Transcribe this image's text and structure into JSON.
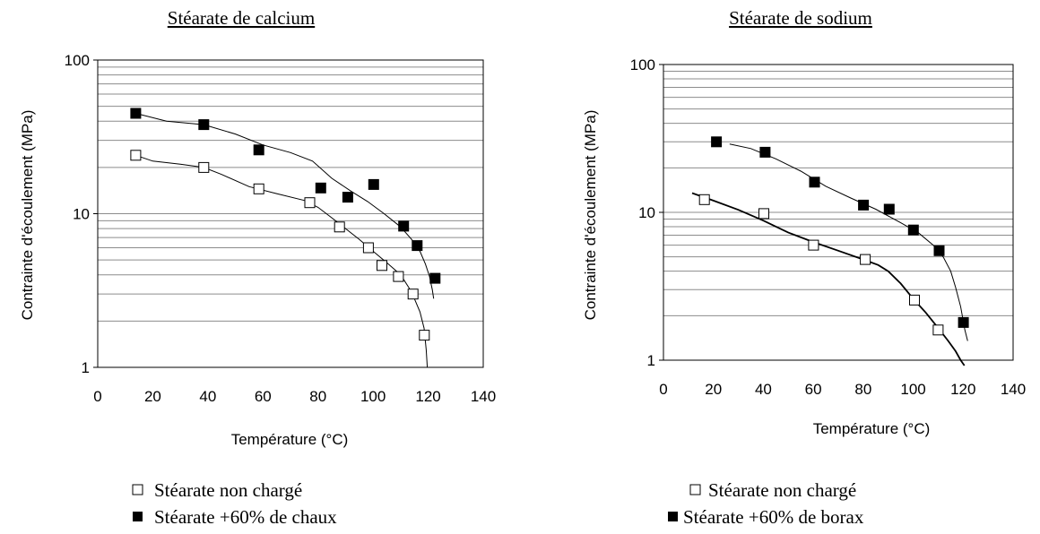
{
  "chart_data": [
    {
      "type": "scatter",
      "yscale": "log",
      "title": "Stéarate de calcium",
      "xlabel": "Température (°C)",
      "ylabel": "Contrainte d'écoulement (MPa)",
      "xlim": [
        0,
        140
      ],
      "ylim": [
        1,
        100
      ],
      "xticks": [
        "0",
        "20",
        "40",
        "60",
        "80",
        "100",
        "120",
        "140"
      ],
      "yticks": [
        "1",
        "10",
        "100"
      ],
      "grid": "horizontal minor lines",
      "series": [
        {
          "name": "Stéarate non chargé",
          "marker": "open-square",
          "x": [
            13.8,
            38.5,
            58.5,
            77.0,
            87.8,
            98.3,
            103.2,
            109.2,
            114.5,
            118.6
          ],
          "y": [
            24,
            20,
            14.5,
            11.8,
            8.2,
            6.0,
            4.6,
            3.9,
            3.0,
            1.62
          ],
          "fit": {
            "x": [
              13.8,
              20,
              30,
              38.5,
              45,
              55,
              65,
              75,
              80,
              85,
              90,
              95,
              100,
              105,
              110,
              113,
              115,
              117,
              118.5,
              119.3,
              119.7
            ],
            "y": [
              24,
              22,
              21,
              20,
              18,
              15,
              13.5,
              12.2,
              11,
              9.4,
              8,
              6.8,
              5.7,
              4.8,
              4.0,
              3.3,
              2.8,
              2.3,
              1.8,
              1.3,
              1.0
            ]
          }
        },
        {
          "name": "Stéarate +60% de chaux",
          "marker": "filled-square",
          "x": [
            13.8,
            38.5,
            58.5,
            81.0,
            90.8,
            100.2,
            111.1,
            116.0,
            122.5
          ],
          "y": [
            45,
            38,
            26,
            14.7,
            12.8,
            15.5,
            8.3,
            6.2,
            3.8
          ],
          "fit": {
            "x": [
              13.8,
              25,
              38.5,
              50,
              60,
              70,
              78,
              85,
              92,
              98,
              104,
              110,
              114,
              117,
              119,
              120.5,
              121.5,
              122
            ],
            "y": [
              45,
              40,
              38,
              33,
              28,
              25,
              22,
              17,
              14,
              12,
              10,
              8.2,
              6.8,
              5.7,
              4.7,
              3.9,
              3.2,
              2.8
            ]
          }
        }
      ]
    },
    {
      "type": "scatter",
      "yscale": "log",
      "title": "Stéarate de sodium",
      "xlabel": "Température (°C)",
      "ylabel": "Contrainte d'écoulement (MPa)",
      "xlim": [
        0,
        140
      ],
      "ylim": [
        1,
        100
      ],
      "xticks": [
        "0",
        "20",
        "40",
        "60",
        "80",
        "100",
        "120",
        "140"
      ],
      "yticks": [
        "1",
        "10",
        "100"
      ],
      "grid": "horizontal minor lines",
      "series": [
        {
          "name": "Stéarate non chargé",
          "marker": "open-square",
          "x": [
            16.4,
            40.2,
            60.1,
            80.8,
            100.5,
            110.0
          ],
          "y": [
            12.2,
            9.8,
            6.0,
            4.8,
            2.55,
            1.6
          ],
          "fit": {
            "x": [
              11.5,
              20,
              30,
              40,
              50,
              60,
              70,
              80,
              86,
              90,
              95,
              100,
              105,
              110,
              114,
              117,
              119,
              120.5
            ],
            "y": [
              13.5,
              12,
              10.4,
              8.8,
              7.3,
              6.3,
              5.5,
              4.8,
              4.4,
              4.0,
              3.3,
              2.6,
              2.1,
              1.65,
              1.35,
              1.15,
              1.0,
              0.92
            ]
          }
        },
        {
          "name": "Stéarate +60% de borax",
          "marker": "filled-square",
          "x": [
            21.2,
            40.7,
            60.5,
            80.1,
            90.4,
            100.1,
            110.4,
            120.1
          ],
          "y": [
            30,
            25.5,
            16,
            11.2,
            10.5,
            7.6,
            5.5,
            1.8
          ],
          "fit": {
            "x": [
              26.5,
              35,
              45,
              55,
              65,
              75,
              85,
              95,
              102,
              108,
              112,
              115,
              117,
              119,
              120.7,
              121.8
            ],
            "y": [
              29,
              27,
              23,
              19,
              15,
              12.5,
              10.5,
              8.5,
              7.3,
              6.0,
              5.0,
              4.0,
              3.1,
              2.3,
              1.6,
              1.35
            ]
          }
        }
      ]
    }
  ]
}
